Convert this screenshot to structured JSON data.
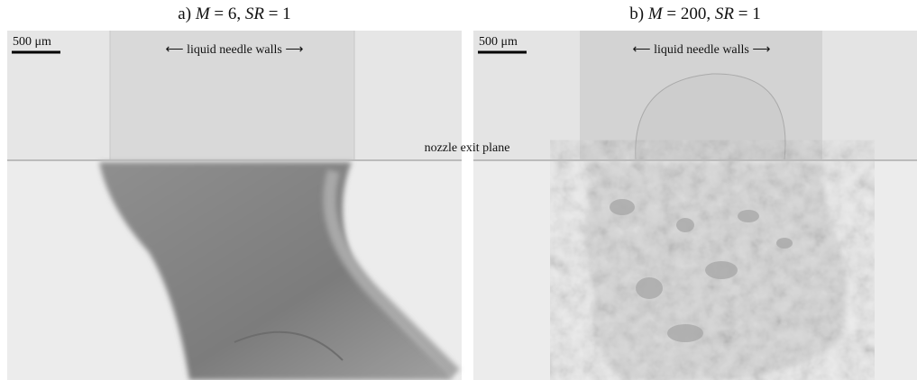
{
  "panels": [
    {
      "title_parts": [
        "a) ",
        "M",
        " = 6, ",
        "SR",
        " = 1"
      ],
      "scale_bar": "500 μm",
      "walls_label": "⟵ liquid needle walls ⟶"
    },
    {
      "title_parts": [
        "b) ",
        "M",
        " = 200, ",
        "SR",
        " = 1"
      ],
      "scale_bar": "500 μm",
      "walls_label": "⟵ liquid needle walls ⟶"
    }
  ],
  "plane_label": "nozzle exit plane"
}
